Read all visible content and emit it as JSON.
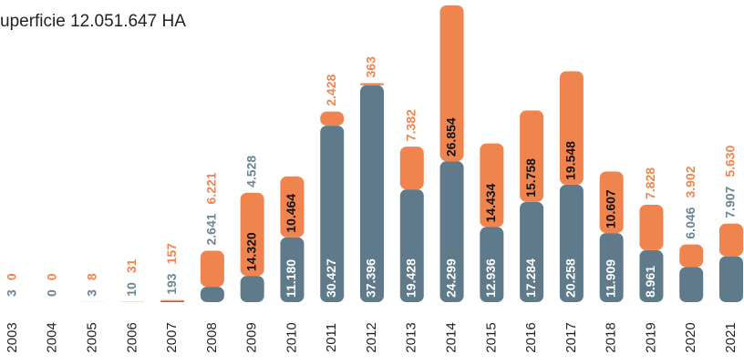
{
  "chart_data": {
    "type": "stacked_bar",
    "title": "uperficie 12.051.647 HA",
    "categories": [
      "2003",
      "2004",
      "2005",
      "2006",
      "2007",
      "2008",
      "2009",
      "2010",
      "2011",
      "2012",
      "2013",
      "2014",
      "2015",
      "2016",
      "2017",
      "2018",
      "2019",
      "2020",
      "2021"
    ],
    "series": [
      {
        "color": "#5f7a8a",
        "values": [
          3,
          0,
          3,
          10,
          193,
          2641,
          4528,
          11180,
          30427,
          37396,
          19428,
          24299,
          12936,
          17284,
          20258,
          11909,
          8961,
          6046,
          7907
        ],
        "value_labels": [
          "3",
          "0",
          "3",
          "10",
          "193",
          "2.641",
          "4.528",
          "11.180",
          "30.427",
          "37.396",
          "19.428",
          "24.299",
          "12.936",
          "17.284",
          "20.258",
          "11.909",
          "8.961",
          "6.046",
          "7.907"
        ]
      },
      {
        "color": "#f0844f",
        "values": [
          0,
          0,
          8,
          31,
          157,
          6221,
          14320,
          10464,
          2428,
          363,
          7382,
          26854,
          14434,
          15758,
          19548,
          10607,
          7828,
          3902,
          5630
        ],
        "value_labels": [
          "0",
          "0",
          "8",
          "31",
          "157",
          "6.221",
          "14.320",
          "10.464",
          "2.428",
          "363",
          "7.382",
          "26.854",
          "14.434",
          "15.758",
          "19.548",
          "10.607",
          "7.828",
          "3.902",
          "5.630"
        ]
      }
    ]
  }
}
